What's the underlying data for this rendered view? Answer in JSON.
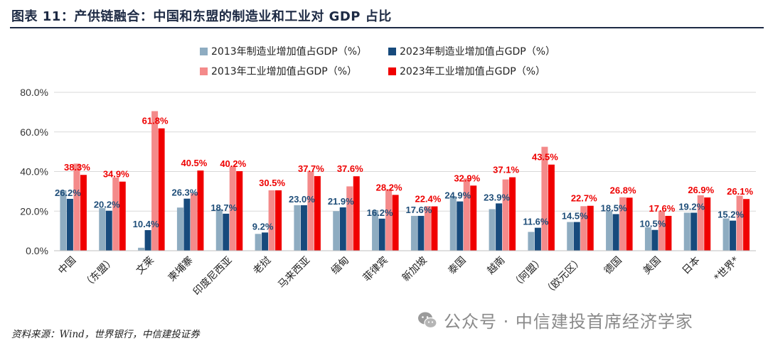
{
  "header": {
    "title": "图表 11：产供链融合：中国和东盟的制造业和工业对 GDP 占比"
  },
  "footer": {
    "source": "资料来源：Wind，世界银行，中信建投证券"
  },
  "watermark": {
    "text": "公众号 · 中信建投首席经济学家",
    "icon": "wechat-icon"
  },
  "chart_data": {
    "type": "bar",
    "categories": [
      "中国",
      "（东盟）",
      "文莱",
      "柬埔寨",
      "印度尼西亚",
      "老挝",
      "马来西亚",
      "缅甸",
      "菲律宾",
      "新加坡",
      "泰国",
      "越南",
      "（阿盟）",
      "（欧元区）",
      "德国",
      "美国",
      "日本",
      "*世界*"
    ],
    "series": [
      {
        "name": "2013年制造业增加值占GDP（%）",
        "color": "#8eacc1",
        "values": [
          30.5,
          21.5,
          1.5,
          21.8,
          21.0,
          8.5,
          23.0,
          20.0,
          20.5,
          17.6,
          27.5,
          21.0,
          9.5,
          14.5,
          20.0,
          11.8,
          19.2,
          16.3
        ]
      },
      {
        "name": "2023年制造业增加值占GDP（%）",
        "color": "#174a7c",
        "values": [
          26.2,
          20.2,
          10.4,
          26.3,
          18.7,
          9.2,
          23.0,
          21.9,
          16.2,
          17.6,
          24.9,
          23.9,
          11.6,
          14.5,
          18.5,
          10.5,
          19.2,
          15.2
        ]
      },
      {
        "name": "2013年工业增加值占GDP（%）",
        "color": "#f48a8a",
        "values": [
          44.0,
          37.0,
          70.5,
          29.0,
          42.5,
          30.5,
          40.2,
          32.5,
          31.0,
          22.5,
          36.5,
          36.0,
          52.5,
          22.5,
          27.0,
          20.0,
          28.0,
          27.8
        ]
      },
      {
        "name": "2023年工业增加值占GDP（%）",
        "color": "#f00000",
        "values": [
          38.3,
          34.9,
          61.8,
          40.5,
          40.2,
          30.5,
          37.7,
          37.6,
          28.2,
          22.4,
          32.9,
          37.1,
          43.5,
          22.7,
          26.8,
          17.6,
          26.9,
          26.1
        ]
      }
    ],
    "data_labels": {
      "manufacturing_2023": [
        "26.2%",
        "20.2%",
        "10.4%",
        "26.3%",
        "18.7%",
        "9.2%",
        "23.0%",
        "21.9%",
        "16.2%",
        "17.6%",
        "24.9%",
        "23.9%",
        "11.6%",
        "14.5%",
        "18.5%",
        "10.5%",
        "19.2%",
        "15.2%"
      ],
      "industry_2023": [
        "38.3%",
        "34.9%",
        "61.8%",
        "40.5%",
        "40.2%",
        "30.5%",
        "37.7%",
        "37.6%",
        "28.2%",
        "22.4%",
        "32.9%",
        "37.1%",
        "43.5%",
        "22.7%",
        "26.8%",
        "17.6%",
        "26.9%",
        "26.1%"
      ]
    },
    "y_ticks": [
      "0.0%",
      "20.0%",
      "40.0%",
      "60.0%",
      "80.0%"
    ],
    "ylim": [
      0,
      80
    ],
    "grid": true,
    "legend_position": "top"
  }
}
